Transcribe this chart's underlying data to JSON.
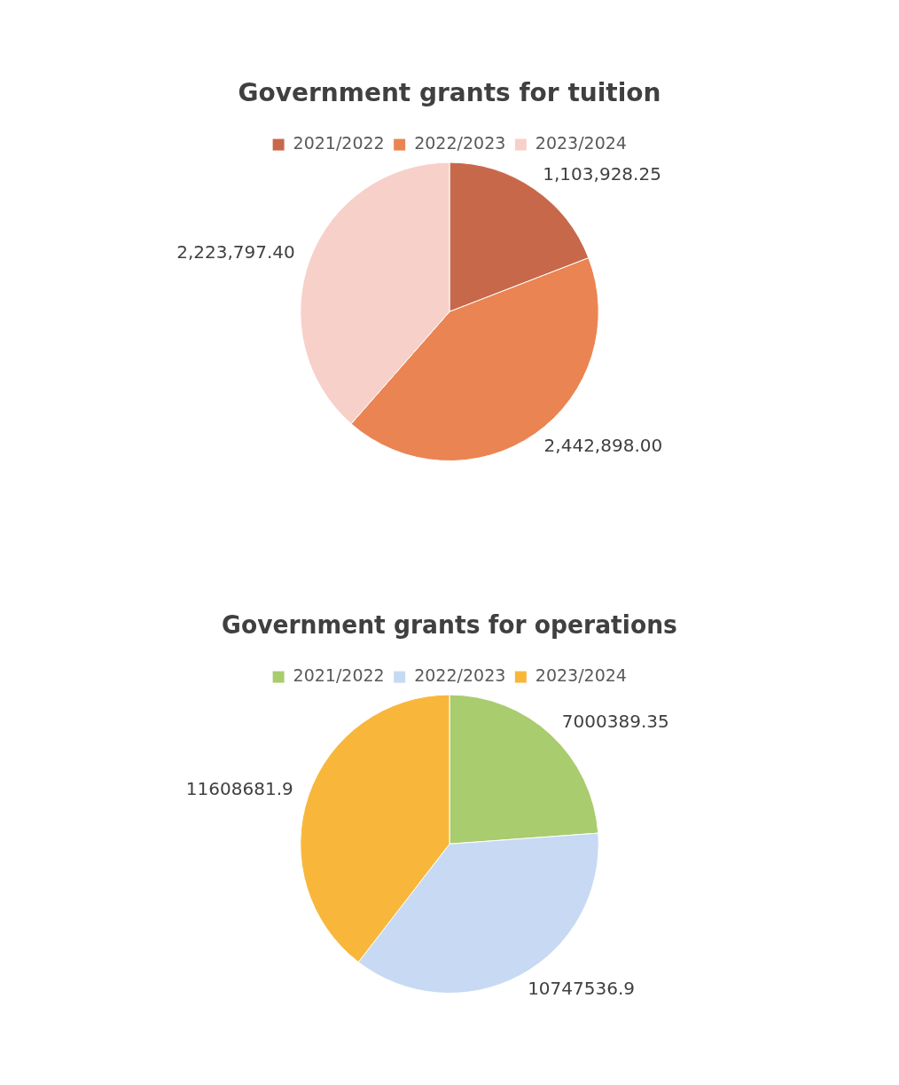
{
  "chart_data": [
    {
      "type": "pie",
      "title": "Government grants for tuition",
      "categories": [
        "2021/2022",
        "2022/2023",
        "2023/2024"
      ],
      "values": [
        1103928.25,
        2442898.0,
        2223797.4
      ],
      "colors": [
        "#c8684a",
        "#ea8452",
        "#f7d0c9"
      ],
      "value_labels": [
        "1,103,928.25",
        "2,442,898.00",
        "2,223,797.40"
      ],
      "legend": "top"
    },
    {
      "type": "pie",
      "title": "Government grants for operations",
      "categories": [
        "2021/2022",
        "2022/2023",
        "2023/2024"
      ],
      "values": [
        7000389.35,
        10747536.9,
        11608681.9
      ],
      "colors": [
        "#a9cc6e",
        "#c7d9f3",
        "#f8b73b"
      ],
      "data_labels": true,
      "legend": "top"
    }
  ]
}
